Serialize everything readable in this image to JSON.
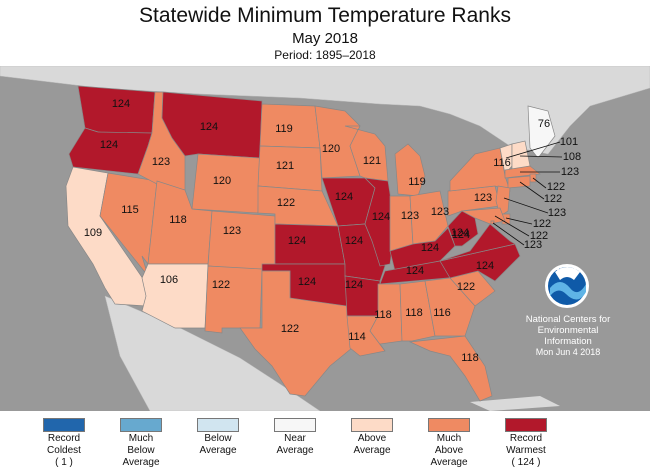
{
  "header": {
    "title": "Statewide Minimum Temperature Ranks",
    "subtitle": "May 2018",
    "period": "Period: 1895–2018"
  },
  "colors": {
    "record_coldest": "#2166ac",
    "much_below": "#67a9cf",
    "below": "#d1e5f0",
    "near": "#f7f7f7",
    "above": "#fddbc7",
    "much_above": "#ef8a62",
    "record_warmest": "#b2182b",
    "background": "#999999",
    "land_outside": "#d9d9d9"
  },
  "states": [
    {
      "name": "Washington",
      "rank": "124",
      "category": "record_warmest"
    },
    {
      "name": "Oregon",
      "rank": "124",
      "category": "record_warmest"
    },
    {
      "name": "California",
      "rank": "109",
      "category": "above"
    },
    {
      "name": "Nevada",
      "rank": "115",
      "category": "much_above"
    },
    {
      "name": "Idaho",
      "rank": "123",
      "category": "much_above"
    },
    {
      "name": "Montana",
      "rank": "124",
      "category": "record_warmest"
    },
    {
      "name": "Wyoming",
      "rank": "120",
      "category": "much_above"
    },
    {
      "name": "Utah",
      "rank": "118",
      "category": "much_above"
    },
    {
      "name": "Arizona",
      "rank": "106",
      "category": "above"
    },
    {
      "name": "Colorado",
      "rank": "123",
      "category": "much_above"
    },
    {
      "name": "New Mexico",
      "rank": "122",
      "category": "much_above"
    },
    {
      "name": "North Dakota",
      "rank": "119",
      "category": "much_above"
    },
    {
      "name": "South Dakota",
      "rank": "121",
      "category": "much_above"
    },
    {
      "name": "Nebraska",
      "rank": "122",
      "category": "much_above"
    },
    {
      "name": "Kansas",
      "rank": "124",
      "category": "record_warmest"
    },
    {
      "name": "Oklahoma",
      "rank": "124",
      "category": "record_warmest"
    },
    {
      "name": "Texas",
      "rank": "122",
      "category": "much_above"
    },
    {
      "name": "Minnesota",
      "rank": "120",
      "category": "much_above"
    },
    {
      "name": "Iowa",
      "rank": "124",
      "category": "record_warmest"
    },
    {
      "name": "Missouri",
      "rank": "124",
      "category": "record_warmest"
    },
    {
      "name": "Arkansas",
      "rank": "124",
      "category": "record_warmest"
    },
    {
      "name": "Louisiana",
      "rank": "114",
      "category": "much_above"
    },
    {
      "name": "Wisconsin",
      "rank": "121",
      "category": "much_above"
    },
    {
      "name": "Illinois",
      "rank": "124",
      "category": "record_warmest"
    },
    {
      "name": "Michigan",
      "rank": "119",
      "category": "much_above"
    },
    {
      "name": "Indiana",
      "rank": "123",
      "category": "much_above"
    },
    {
      "name": "Ohio",
      "rank": "123",
      "category": "much_above"
    },
    {
      "name": "Kentucky",
      "rank": "124",
      "category": "record_warmest"
    },
    {
      "name": "Tennessee",
      "rank": "124",
      "category": "record_warmest"
    },
    {
      "name": "Mississippi",
      "rank": "118",
      "category": "much_above"
    },
    {
      "name": "Alabama",
      "rank": "118",
      "category": "much_above"
    },
    {
      "name": "Georgia",
      "rank": "116",
      "category": "much_above"
    },
    {
      "name": "Florida",
      "rank": "118",
      "category": "much_above"
    },
    {
      "name": "South Carolina",
      "rank": "122",
      "category": "much_above"
    },
    {
      "name": "North Carolina",
      "rank": "124",
      "category": "record_warmest"
    },
    {
      "name": "Virginia",
      "rank": "124",
      "category": "record_warmest"
    },
    {
      "name": "West Virginia",
      "rank": "124",
      "category": "record_warmest"
    },
    {
      "name": "Pennsylvania",
      "rank": "123",
      "category": "much_above"
    },
    {
      "name": "New York",
      "rank": "116",
      "category": "much_above"
    },
    {
      "name": "Maine",
      "rank": "76",
      "category": "near"
    },
    {
      "name": "Vermont",
      "rank": "101",
      "category": "above"
    },
    {
      "name": "New Hampshire",
      "rank": "108",
      "category": "above"
    },
    {
      "name": "Massachusetts",
      "rank": "123",
      "category": "much_above"
    },
    {
      "name": "Rhode Island",
      "rank": "122",
      "category": "much_above"
    },
    {
      "name": "Connecticut",
      "rank": "122",
      "category": "much_above"
    },
    {
      "name": "New Jersey",
      "rank": "123",
      "category": "much_above"
    },
    {
      "name": "Delaware",
      "rank": "122",
      "category": "much_above"
    },
    {
      "name": "Maryland",
      "rank": "122",
      "category": "much_above"
    },
    {
      "name": "District of Columbia",
      "rank": "123",
      "category": "much_above"
    }
  ],
  "logo": {
    "text": "NOAA"
  },
  "credit": {
    "line1": "National Centers for",
    "line2": "Environmental",
    "line3": "Information",
    "date": "Mon Jun  4 2018"
  },
  "legend": [
    {
      "key": "record_coldest",
      "line1": "Record",
      "line2": "Coldest",
      "line3": "( 1 )"
    },
    {
      "key": "much_below",
      "line1": "Much",
      "line2": "Below",
      "line3": "Average"
    },
    {
      "key": "below",
      "line1": "Below",
      "line2": "Average",
      "line3": ""
    },
    {
      "key": "near",
      "line1": "Near",
      "line2": "Average",
      "line3": ""
    },
    {
      "key": "above",
      "line1": "Above",
      "line2": "Average",
      "line3": ""
    },
    {
      "key": "much_above",
      "line1": "Much",
      "line2": "Above",
      "line3": "Average"
    },
    {
      "key": "record_warmest",
      "line1": "Record",
      "line2": "Warmest",
      "line3": "( 124 )"
    }
  ]
}
